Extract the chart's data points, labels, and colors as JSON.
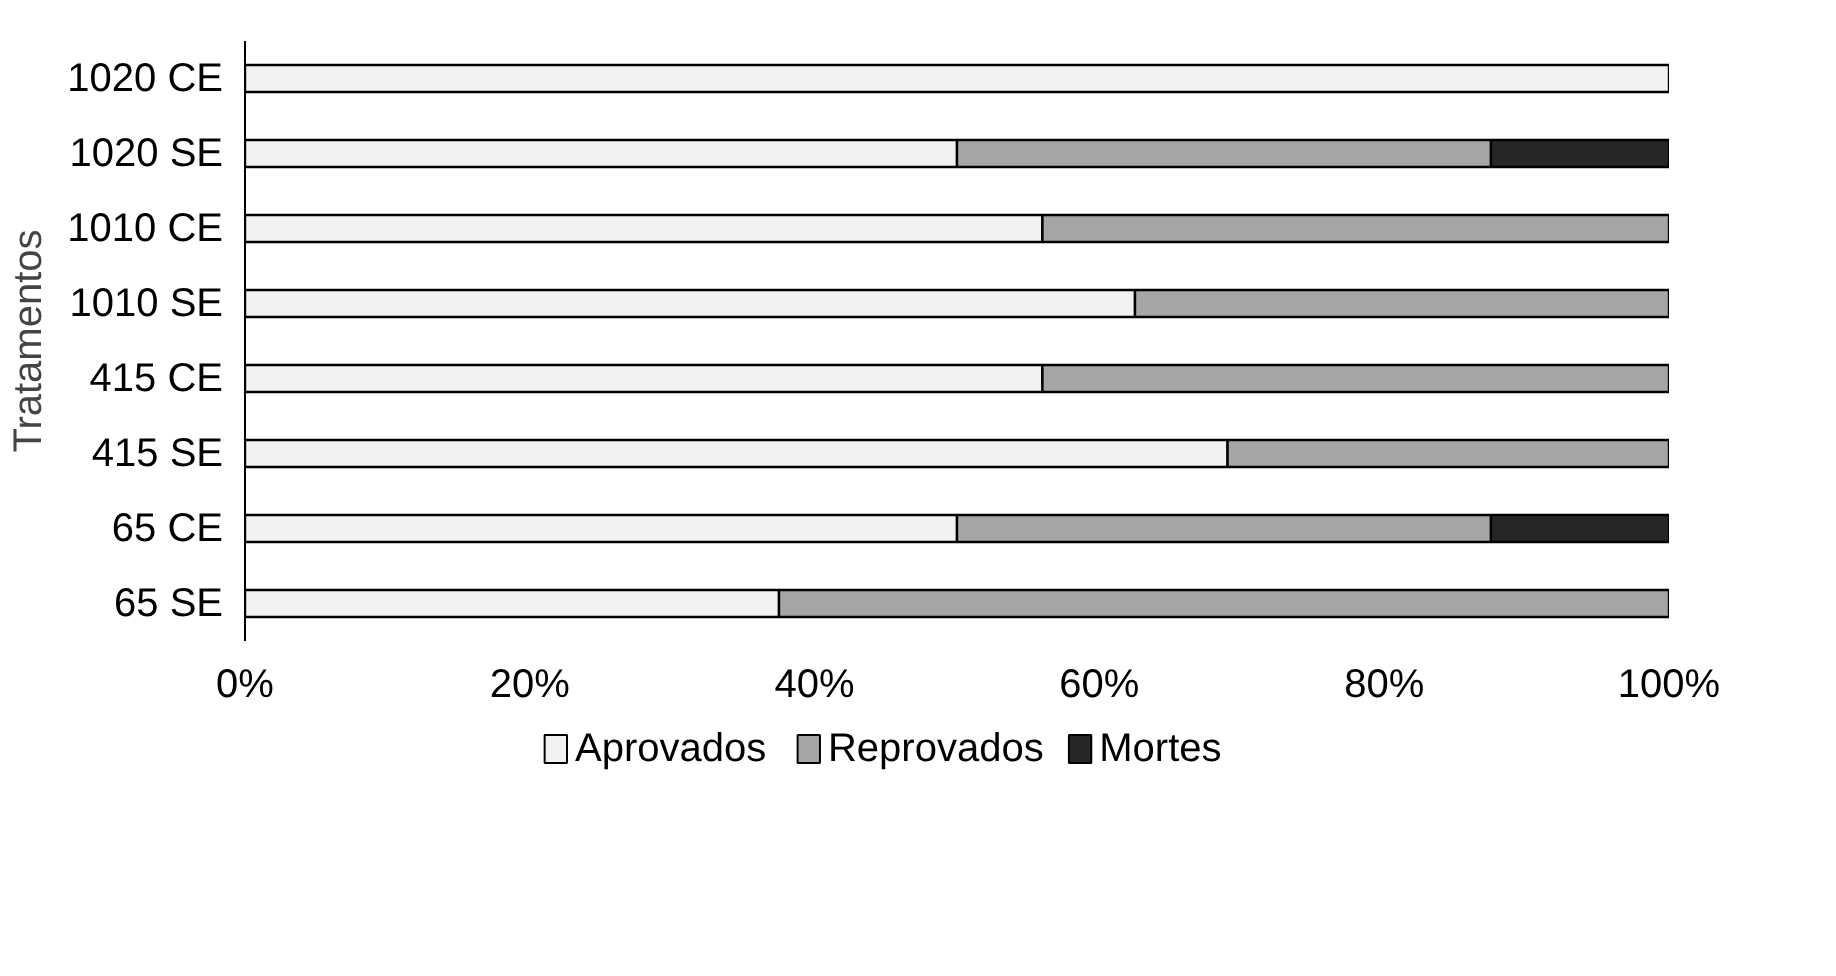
{
  "chart_data": {
    "type": "bar",
    "orientation": "horizontal",
    "stacked": true,
    "ylabel": "Tratamentos",
    "categories": [
      "1020 CE",
      "1020 SE",
      "1010 CE",
      "1010 SE",
      "415 CE",
      "415 SE",
      "65 CE",
      "65 SE"
    ],
    "series": [
      {
        "name": "Aprovados",
        "color": "#f2f2f2",
        "values": [
          100,
          50,
          56,
          62.5,
          56,
          69,
          50,
          37.5
        ]
      },
      {
        "name": "Reprovados",
        "color": "#a6a6a6",
        "values": [
          null,
          37.5,
          44,
          37.5,
          44,
          31,
          37.5,
          62.5
        ]
      },
      {
        "name": "Mortes",
        "color": "#262626",
        "values": [
          null,
          12.5,
          null,
          null,
          null,
          null,
          12.5,
          null
        ]
      }
    ],
    "xlim": [
      0,
      100
    ],
    "xticks": [
      {
        "value": 0,
        "label": "0%"
      },
      {
        "value": 20,
        "label": "20%"
      },
      {
        "value": 40,
        "label": "40%"
      },
      {
        "value": 60,
        "label": "60%"
      },
      {
        "value": 80,
        "label": "80%"
      },
      {
        "value": 100,
        "label": "100%"
      }
    ],
    "grid": false,
    "legend": "bottom"
  }
}
